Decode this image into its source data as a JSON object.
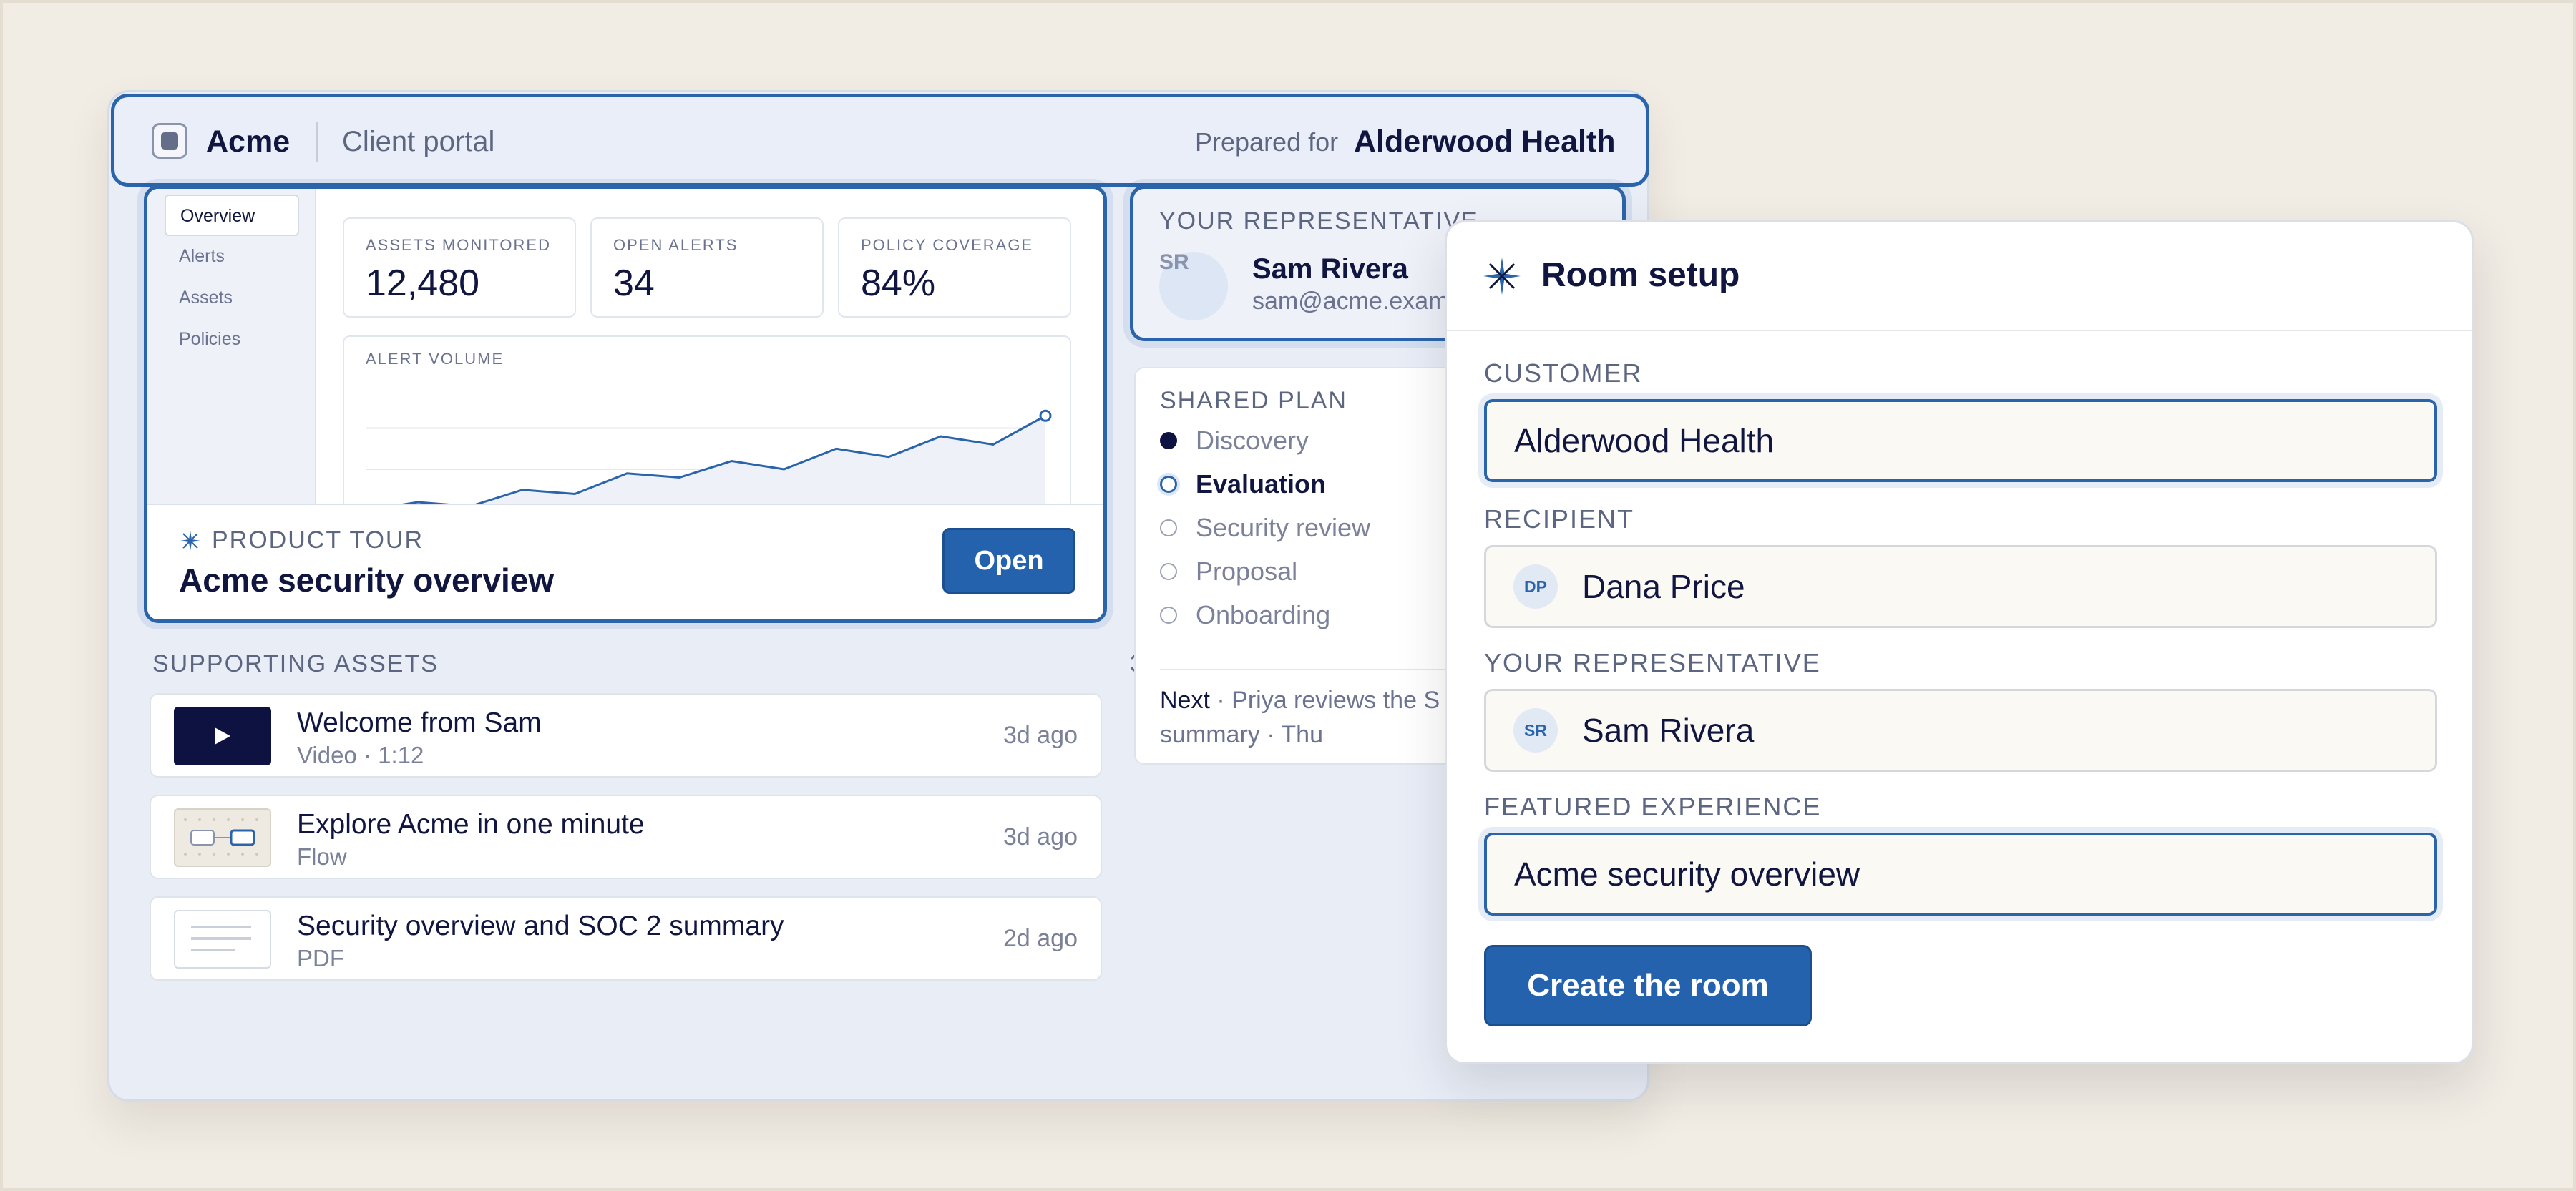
{
  "portal": {
    "brand": "Acme",
    "subtitle": "Client portal",
    "prepared_label": "Prepared for",
    "prepared_for": "Alderwood Health"
  },
  "tour": {
    "nav": [
      "Overview",
      "Alerts",
      "Assets",
      "Policies"
    ],
    "stats": [
      {
        "label": "ASSETS MONITORED",
        "value": "12,480"
      },
      {
        "label": "OPEN ALERTS",
        "value": "34"
      },
      {
        "label": "POLICY COVERAGE",
        "value": "84%"
      }
    ],
    "chart_title": "ALERT VOLUME",
    "kicker": "PRODUCT TOUR",
    "title": "Acme security overview",
    "open_label": "Open"
  },
  "chart_data": {
    "type": "area",
    "title": "ALERT VOLUME",
    "xlabel": "",
    "ylabel": "",
    "values": [
      10,
      12,
      11,
      15,
      14,
      19,
      18,
      22,
      20,
      25,
      23,
      28,
      26,
      33
    ],
    "ylim": [
      0,
      40
    ],
    "grid": true
  },
  "assets": {
    "heading": "SUPPORTING ASSETS",
    "count": "3",
    "items": [
      {
        "title": "Welcome from Sam",
        "meta": "Video · 1:12",
        "time": "3d ago",
        "thumb": "play-icon"
      },
      {
        "title": "Explore Acme in one minute",
        "meta": "Flow",
        "time": "3d ago",
        "thumb": "flow-icon"
      },
      {
        "title": "Security overview and SOC 2 summary",
        "meta": "PDF",
        "time": "2d ago",
        "thumb": "document-icon"
      }
    ]
  },
  "rep": {
    "label": "YOUR REPRESENTATIVE",
    "initials": "SR",
    "name": "Sam Rivera",
    "email": "sam@acme.exam"
  },
  "plan": {
    "label": "SHARED PLAN",
    "steps": [
      {
        "label": "Discovery",
        "state": "done"
      },
      {
        "label": "Evaluation",
        "state": "current"
      },
      {
        "label": "Security review",
        "state": "todo"
      },
      {
        "label": "Proposal",
        "state": "todo"
      },
      {
        "label": "Onboarding",
        "state": "todo"
      }
    ],
    "next_label": "Next",
    "next_text": " · Priya reviews the S",
    "next_line2": "summary · Thu"
  },
  "modal": {
    "title": "Room setup",
    "customer_label": "CUSTOMER",
    "customer_value": "Alderwood Health",
    "recipient_label": "RECIPIENT",
    "recipient_initials": "DP",
    "recipient_value": "Dana Price",
    "rep_label": "YOUR REPRESENTATIVE",
    "rep_initials": "SR",
    "rep_value": "Sam Rivera",
    "featured_label": "FEATURED EXPERIENCE",
    "featured_value": "Acme security overview",
    "create_label": "Create the room"
  },
  "colors": {
    "accent": "#2a64aa",
    "ink": "#101640",
    "background": "#f1ece4"
  }
}
